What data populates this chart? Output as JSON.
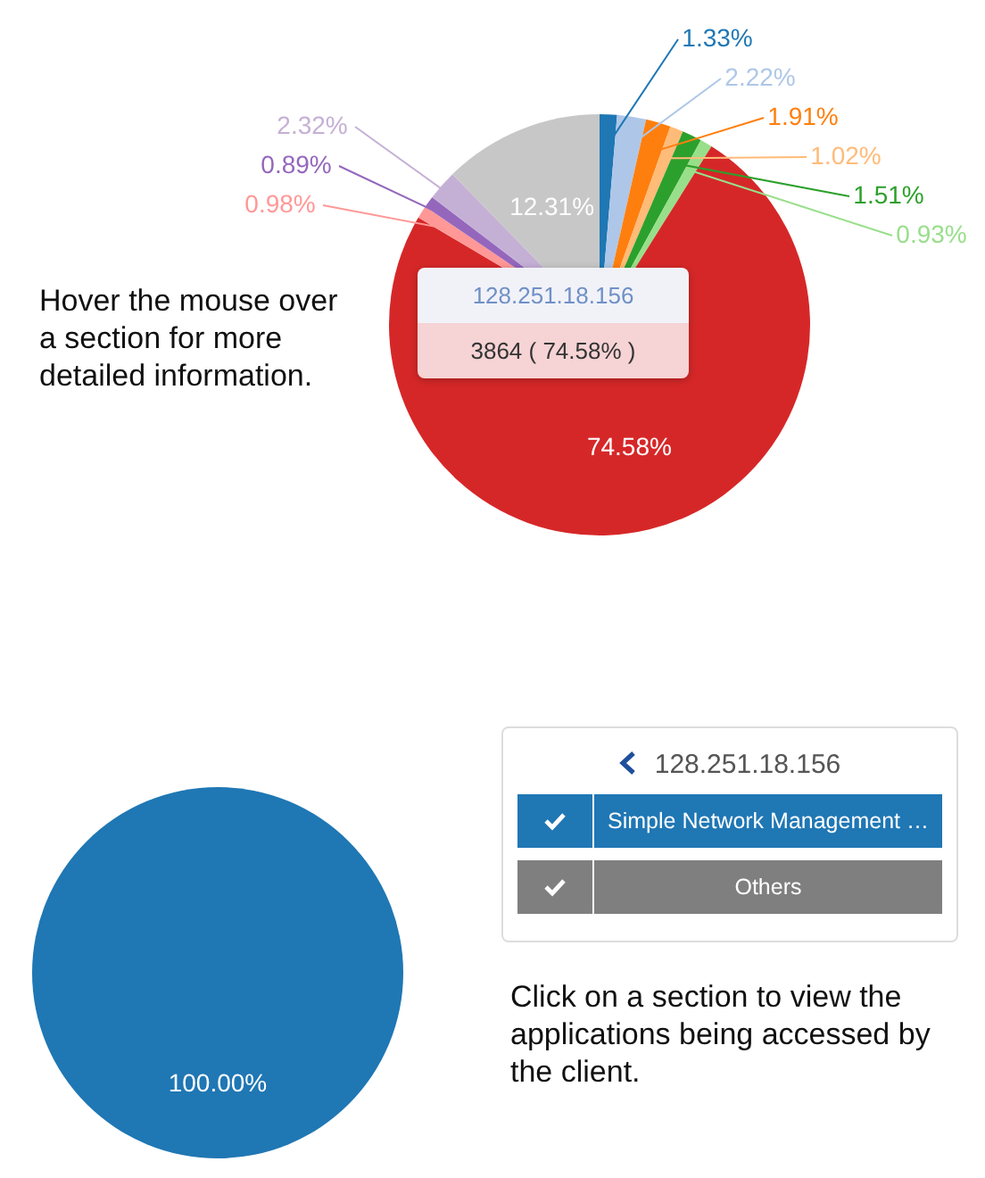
{
  "chart_data": [
    {
      "type": "pie",
      "categories": [
        null,
        null,
        null,
        null,
        null,
        null,
        "128.251.18.156",
        null,
        null,
        null,
        null
      ],
      "values": [
        1.33,
        2.22,
        1.91,
        1.02,
        1.51,
        0.93,
        74.58,
        0.98,
        0.89,
        2.32,
        12.31
      ],
      "colors": [
        "#1f77b4",
        "#aec7e8",
        "#ff7f0e",
        "#ffbb78",
        "#2ca02c",
        "#98df8a",
        "#d62728",
        "#ff9896",
        "#9467bd",
        "#c5b0d5",
        "#c7c7c7"
      ],
      "value_labels": [
        "1.33%",
        "2.22%",
        "1.91%",
        "1.02%",
        "1.51%",
        "0.93%",
        "74.58%",
        "0.98%",
        "0.89%",
        "2.32%",
        "12.31%"
      ],
      "annotations": [
        {
          "text": "3864 ( 74.58% )",
          "x": "128.251.18.156"
        },
        "Hover the mouse over a section for more detailed information."
      ]
    },
    {
      "type": "pie",
      "categories": [
        "Simple Network Management …",
        "Others"
      ],
      "values": [
        100,
        0
      ],
      "colors": [
        "#1f77b4",
        "#7f7f7f"
      ],
      "value_labels": [
        "100.00%",
        null
      ],
      "legend_title": "128.251.18.156",
      "legend": "right",
      "annotations": [
        "Click on a section to view the applications being accessed by the client."
      ]
    }
  ]
}
